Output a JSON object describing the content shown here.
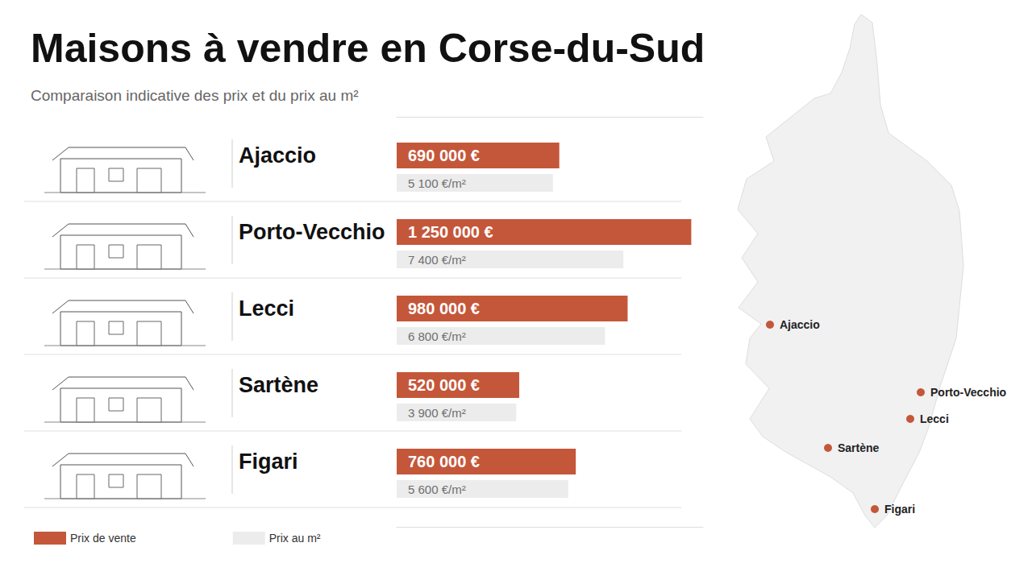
{
  "chart_data": {
    "type": "bar",
    "orientation": "horizontal",
    "title": "Maisons à vendre en Corse-du-Sud",
    "subtitle": "Comparaison indicative des prix et du prix au m²",
    "categories": [
      "Ajaccio",
      "Porto-Vecchio",
      "Lecci",
      "Sartène",
      "Figari"
    ],
    "series": [
      {
        "name": "Prix de vente",
        "color": "#c4573a",
        "values": [
          690000,
          1250000,
          980000,
          520000,
          760000
        ],
        "value_labels": [
          "690 000 €",
          "1 250 000 €",
          "980 000 €",
          "520 000 €",
          "760 000 €"
        ]
      },
      {
        "name": "Prix au m²",
        "color": "#ececec",
        "axis": "x2",
        "values": [
          5100,
          7400,
          6800,
          3900,
          5600
        ],
        "value_labels": [
          "5 100 €/m²",
          "7 400 €/m²",
          "6 800 €/m²",
          "3 900 €/m²",
          "5 600 €/m²"
        ]
      }
    ],
    "xlim": [
      0,
      1300000
    ],
    "x2lim": [
      0,
      10000
    ],
    "tick_labels": false,
    "grid": false,
    "data_labels": true,
    "legend": "bottom-left"
  }
}
